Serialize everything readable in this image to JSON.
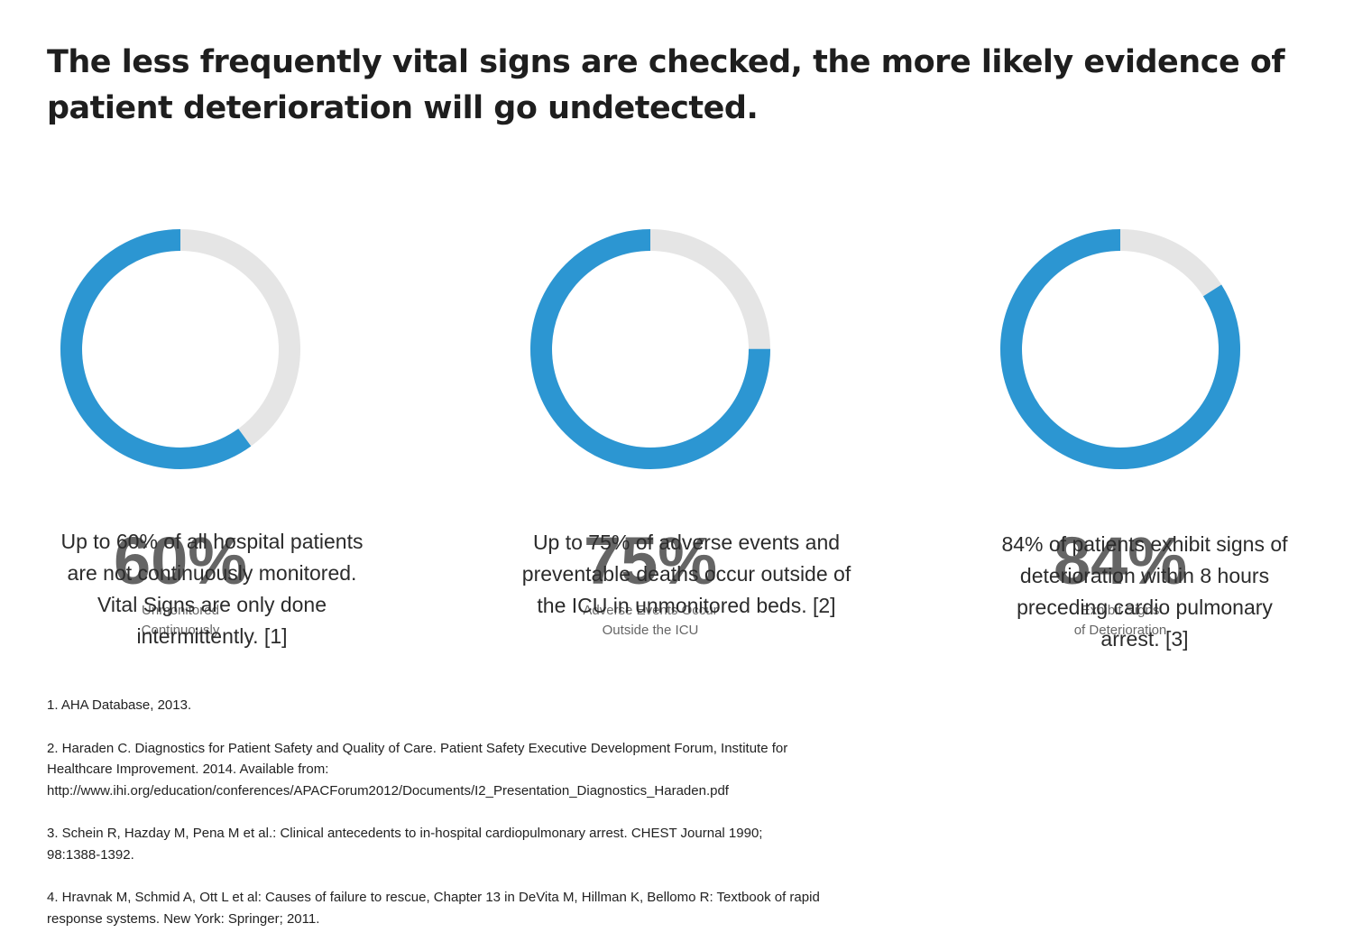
{
  "title": {
    "line1": "The less frequently vital signs are checked, the more likely evidence of",
    "line2": "patient deterioration will go undetected."
  },
  "colors": {
    "accent": "#2c96d2",
    "track": "#e5e5e5",
    "percent_text": "#656565"
  },
  "chart_data": [
    {
      "type": "pie",
      "style": "donut",
      "value": 60,
      "remainder": 40,
      "center_label": "60%",
      "caption_line1": "Unmonitored",
      "caption_line2": "Continuously",
      "description": [
        "Up to 60% of all hospital patients",
        "are not continuously monitored.",
        "Vital Signs are only done",
        "intermittently. [1]"
      ]
    },
    {
      "type": "pie",
      "style": "donut",
      "value": 75,
      "remainder": 25,
      "center_label": "75%",
      "caption_line1": "Adverse Events Occur",
      "caption_line2": "Outside the ICU",
      "description": [
        "Up to 75% of adverse events and",
        "preventable deaths occur outside of",
        "the ICU in unmonitored beds. [2]"
      ]
    },
    {
      "type": "pie",
      "style": "donut",
      "value": 84,
      "remainder": 16,
      "center_label": "84%",
      "caption_line1": "Exhibit Signs",
      "caption_line2": "of Deterioration",
      "description": [
        "84% of patients exhibit signs of",
        "deterioration within 8 hours",
        "preceding cardio pulmonary",
        "arrest. [3]"
      ]
    }
  ],
  "references": [
    [
      "1. AHA Database, 2013."
    ],
    [
      "2. Haraden C. Diagnostics for Patient Safety and Quality of Care. Patient Safety Executive Development Forum, Institute for",
      "Healthcare Improvement. 2014. Available from:",
      "http://www.ihi.org/education/conferences/APACForum2012/Documents/I2_Presentation_Diagnostics_Haraden.pdf"
    ],
    [
      "3. Schein R, Hazday M, Pena M et al.: Clinical antecedents to in-hospital cardiopulmonary arrest. CHEST Journal 1990;",
      "98:1388-1392."
    ],
    [
      "4. Hravnak M, Schmid A, Ott L et al: Causes of failure to rescue, Chapter 13 in DeVita M, Hillman K, Bellomo R: Textbook of rapid",
      "response systems. New York: Springer; 2011."
    ]
  ]
}
